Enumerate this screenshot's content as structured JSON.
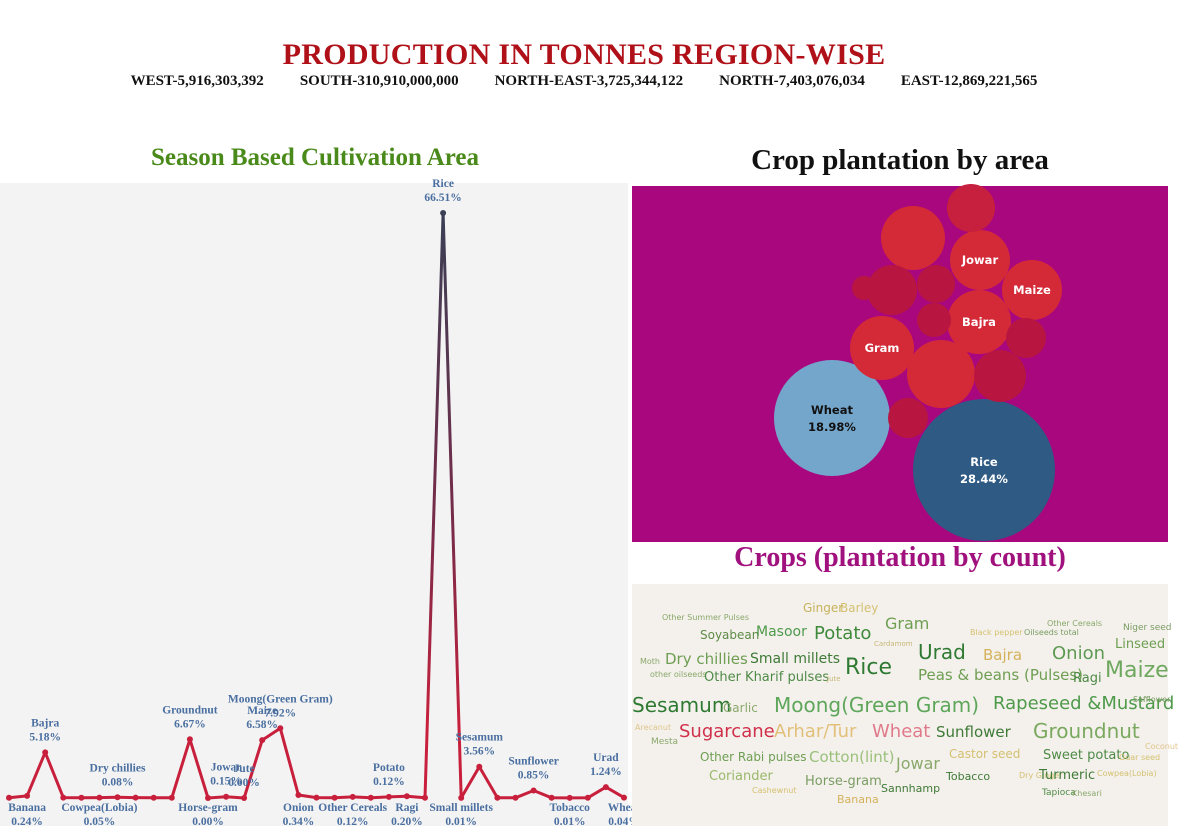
{
  "header": {
    "title": "PRODUCTION IN TONNES REGION-WISE",
    "regions": [
      "WEST-5,916,303,392",
      "SOUTH-310,910,000,000",
      "NORTH-EAST-3,725,344,122",
      "NORTH-7,403,076,034",
      "EAST-12,869,221,565"
    ]
  },
  "colors": {
    "title_red": "#b01018",
    "season_green": "#4a8a1a",
    "line_red": "#c8203c",
    "bubble_bg": "#a9077e",
    "count_title": "#a0117e",
    "label_blue": "#4a6fa0"
  },
  "chart_data": [
    {
      "type": "line",
      "title": "Season Based Cultivation Area",
      "ylim": [
        0,
        70
      ],
      "points": [
        {
          "v": 0.02,
          "label": ""
        },
        {
          "v": 0.24,
          "label": "Banana",
          "value_label": "0.24%",
          "pos": "below"
        },
        {
          "v": 5.18,
          "label": "Bajra",
          "value_label": "5.18%",
          "pos": "above"
        },
        {
          "v": 0.05,
          "label": "",
          "value_label": ""
        },
        {
          "v": 0.02,
          "label": ""
        },
        {
          "v": 0.05,
          "label": "Cowpea(Lobia)",
          "value_label": "0.05%",
          "pos": "below"
        },
        {
          "v": 0.08,
          "label": "Dry chillies",
          "value_label": "0.08%",
          "pos": "above"
        },
        {
          "v": 0.05,
          "label": ""
        },
        {
          "v": 0.02,
          "label": ""
        },
        {
          "v": 0.02,
          "label": ""
        },
        {
          "v": 6.67,
          "label": "Groundnut",
          "value_label": "6.67%",
          "pos": "above"
        },
        {
          "v": 0.0,
          "label": "Horse-gram",
          "value_label": "0.00%",
          "pos": "below"
        },
        {
          "v": 0.15,
          "label": "Jowar",
          "value_label": "0.15%",
          "pos": "above"
        },
        {
          "v": 0.0,
          "label": "Jute",
          "value_label": "0.00%",
          "pos": "above"
        },
        {
          "v": 6.58,
          "label": "Maize",
          "value_label": "6.58%",
          "pos": "above"
        },
        {
          "v": 7.92,
          "label": "Moong(Green Gram)",
          "value_label": "7.92%",
          "pos": "above"
        },
        {
          "v": 0.34,
          "label": "Onion",
          "value_label": "0.34%",
          "pos": "below"
        },
        {
          "v": 0.05,
          "label": ""
        },
        {
          "v": 0.02,
          "label": ""
        },
        {
          "v": 0.12,
          "label": "Other Cereals",
          "value_label": "0.12%",
          "pos": "below"
        },
        {
          "v": 0.03,
          "label": ""
        },
        {
          "v": 0.12,
          "label": "Potato",
          "value_label": "0.12%",
          "pos": "above"
        },
        {
          "v": 0.2,
          "label": "Ragi",
          "value_label": "0.20%",
          "pos": "below"
        },
        {
          "v": 0.02,
          "label": ""
        },
        {
          "v": 66.51,
          "label": "Rice",
          "value_label": "66.51%",
          "pos": "above"
        },
        {
          "v": 0.01,
          "label": "Small millets",
          "value_label": "0.01%",
          "pos": "below"
        },
        {
          "v": 3.56,
          "label": "Sesamum",
          "value_label": "3.56%",
          "pos": "above"
        },
        {
          "v": 0.02,
          "label": ""
        },
        {
          "v": 0.02,
          "label": ""
        },
        {
          "v": 0.85,
          "label": "Sunflower",
          "value_label": "0.85%",
          "pos": "above"
        },
        {
          "v": 0.02,
          "label": ""
        },
        {
          "v": 0.01,
          "label": "Tobacco",
          "value_label": "0.01%",
          "pos": "below"
        },
        {
          "v": 0.02,
          "label": ""
        },
        {
          "v": 1.24,
          "label": "Urad",
          "value_label": "1.24%",
          "pos": "above"
        },
        {
          "v": 0.04,
          "label": "Wheat",
          "value_label": "0.04%",
          "pos": "below"
        }
      ]
    },
    {
      "type": "bubble",
      "title": "Crop plantation by area",
      "bubbles": [
        {
          "name": "Rice",
          "pct": "28.44%",
          "value": 28.44,
          "color": "#2e5a84",
          "text_color": "#ffffff"
        },
        {
          "name": "Wheat",
          "pct": "18.98%",
          "value": 18.98,
          "color": "#74a6cc",
          "text_color": "#111111"
        },
        {
          "name": "Gram",
          "pct": "",
          "value": 5.8,
          "color": "#d42a38",
          "text_color": "#ffffff"
        },
        {
          "name": "Bajra",
          "pct": "",
          "value": 5.4,
          "color": "#d42a38",
          "text_color": "#ffffff"
        },
        {
          "name": "Jowar",
          "pct": "",
          "value": 4.8,
          "color": "#d42a38",
          "text_color": "#ffffff"
        },
        {
          "name": "Maize",
          "pct": "",
          "value": 4.9,
          "color": "#d42a38",
          "text_color": "#ffffff"
        },
        {
          "name": "",
          "pct": "",
          "value": 6.2,
          "color": "#d42a38",
          "text_color": "#ffffff"
        },
        {
          "name": "",
          "pct": "",
          "value": 5.6,
          "color": "#d42a38",
          "text_color": "#ffffff"
        },
        {
          "name": "",
          "pct": "",
          "value": 3.4,
          "color": "#c71f3e",
          "text_color": "#ffffff"
        },
        {
          "name": "",
          "pct": "",
          "value": 3.2,
          "color": "#b81640",
          "text_color": "#ffffff"
        },
        {
          "name": "",
          "pct": "",
          "value": 3.0,
          "color": "#b81640",
          "text_color": "#ffffff"
        },
        {
          "name": "",
          "pct": "",
          "value": 2.9,
          "color": "#b81640",
          "text_color": "#ffffff"
        },
        {
          "name": "",
          "pct": "",
          "value": 2.6,
          "color": "#b81640",
          "text_color": "#ffffff"
        },
        {
          "name": "",
          "pct": "",
          "value": 2.4,
          "color": "#b81640",
          "text_color": "#ffffff"
        },
        {
          "name": "",
          "pct": "",
          "value": 2.0,
          "color": "#b81640",
          "text_color": "#ffffff"
        },
        {
          "name": "",
          "pct": "",
          "value": 1.9,
          "color": "#b81640",
          "text_color": "#ffffff"
        },
        {
          "name": "",
          "pct": "",
          "value": 1.7,
          "color": "#b81640",
          "text_color": "#ffffff"
        }
      ]
    },
    {
      "type": "wordcloud",
      "title": "Crops (plantation by count)",
      "words": [
        {
          "text": "Ginger",
          "color": "#c6b35a"
        },
        {
          "text": "Barley",
          "color": "#d4c070"
        },
        {
          "text": "Other Summer Pulses",
          "color": "#8aa86a"
        },
        {
          "text": "Gram",
          "color": "#6e9e52"
        },
        {
          "text": "Other Cereals",
          "color": "#8aa86a"
        },
        {
          "text": "Niger seed",
          "color": "#7a9c62"
        },
        {
          "text": "Soyabean",
          "color": "#5e8a46"
        },
        {
          "text": "Masoor",
          "color": "#4e9a4a"
        },
        {
          "text": "Potato",
          "color": "#3f8a3a"
        },
        {
          "text": "Cardamom",
          "color": "#c8b878"
        },
        {
          "text": "Black pepper",
          "color": "#d6c070"
        },
        {
          "text": "Oilseeds total",
          "color": "#7a9c62"
        },
        {
          "text": "Linseed",
          "color": "#6e9e52"
        },
        {
          "text": "Moth",
          "color": "#8aa86a"
        },
        {
          "text": "Dry chillies",
          "color": "#6e9e52"
        },
        {
          "text": "Small millets",
          "color": "#3f7a36"
        },
        {
          "text": "Rice",
          "color": "#2f7a32"
        },
        {
          "text": "Urad",
          "color": "#2f7a32"
        },
        {
          "text": "Bajra",
          "color": "#d4b25a"
        },
        {
          "text": "Onion",
          "color": "#5e9a52"
        },
        {
          "text": "Maize",
          "color": "#6ea85e"
        },
        {
          "text": "other oilseeds",
          "color": "#8aa86a"
        },
        {
          "text": "Other Kharif pulses",
          "color": "#4e8a46"
        },
        {
          "text": "Jute",
          "color": "#c8b878"
        },
        {
          "text": "Peas & beans (Pulses)",
          "color": "#6e9e52"
        },
        {
          "text": "Ragi",
          "color": "#4e8a46"
        },
        {
          "text": "Sesamum",
          "color": "#2f7a32"
        },
        {
          "text": "Garlic",
          "color": "#8aa86a"
        },
        {
          "text": "Moong(Green Gram)",
          "color": "#5ea65a"
        },
        {
          "text": "Rapeseed &Mustard",
          "color": "#4e9a4a"
        },
        {
          "text": "Safflower",
          "color": "#7a9c62"
        },
        {
          "text": "Arecanut",
          "color": "#e0c48a"
        },
        {
          "text": "Sugarcane",
          "color": "#d0304a"
        },
        {
          "text": "Arhar/Tur",
          "color": "#e2c07a"
        },
        {
          "text": "Wheat",
          "color": "#e07a8a"
        },
        {
          "text": "Sunflower",
          "color": "#3f7a36"
        },
        {
          "text": "Groundnut",
          "color": "#7aa85e"
        },
        {
          "text": "Mesta",
          "color": "#8aa86a"
        },
        {
          "text": "Coconut",
          "color": "#e2c48a"
        },
        {
          "text": "Other Rabi pulses",
          "color": "#6e9e52"
        },
        {
          "text": "Cotton(lint)",
          "color": "#9ac07a"
        },
        {
          "text": "Castor seed",
          "color": "#d4c070"
        },
        {
          "text": "Sweet potato",
          "color": "#4e8a46"
        },
        {
          "text": "Guar seed",
          "color": "#d4c070"
        },
        {
          "text": "Jowar",
          "color": "#8aa86a"
        },
        {
          "text": "Coriander",
          "color": "#9ab86a"
        },
        {
          "text": "Tobacco",
          "color": "#3f7a36"
        },
        {
          "text": "Dry Ginger",
          "color": "#d4c070"
        },
        {
          "text": "Turmeric",
          "color": "#3f7a36"
        },
        {
          "text": "Cowpea(Lobia)",
          "color": "#d4c070"
        },
        {
          "text": "Horse-gram",
          "color": "#7a9c62"
        },
        {
          "text": "Cashewnut",
          "color": "#d4c070"
        },
        {
          "text": "Sannhamp",
          "color": "#3f7a36"
        },
        {
          "text": "Tapioca",
          "color": "#4e8a46"
        },
        {
          "text": "Khesari",
          "color": "#8aa86a"
        },
        {
          "text": "Banana",
          "color": "#d4b25a"
        }
      ]
    }
  ]
}
